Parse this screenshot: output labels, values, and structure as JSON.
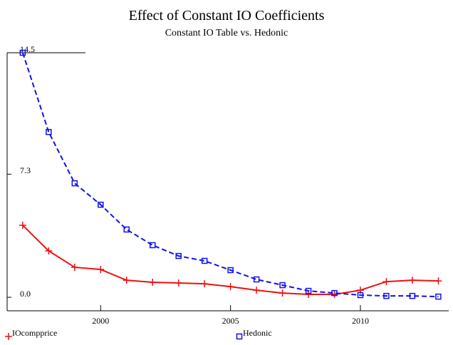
{
  "chart_data": {
    "type": "line",
    "title": "Effect of Constant IO Coefficients",
    "subtitle": "Constant IO Table vs. Hedonic",
    "x": [
      1997,
      1998,
      1999,
      2000,
      2001,
      2002,
      2003,
      2004,
      2005,
      2006,
      2007,
      2008,
      2009,
      2010,
      2011,
      2012,
      2013
    ],
    "series": [
      {
        "name": "IOcompprice",
        "color": "#ee1111",
        "marker": "plus",
        "dash": false,
        "values": [
          4.27,
          2.75,
          1.78,
          1.65,
          1.01,
          0.89,
          0.85,
          0.8,
          0.63,
          0.42,
          0.25,
          0.17,
          0.17,
          0.42,
          0.93,
          1.01,
          0.97
        ]
      },
      {
        "name": "Hedonic",
        "color": "#1111ee",
        "marker": "square",
        "dash": true,
        "values": [
          14.5,
          9.8,
          6.76,
          5.49,
          4.02,
          3.09,
          2.45,
          2.16,
          1.61,
          1.06,
          0.72,
          0.38,
          0.25,
          0.13,
          0.08,
          0.08,
          0.04
        ]
      }
    ],
    "xlim": [
      1996.4,
      2013.4
    ],
    "xticks": [
      2000,
      2005,
      2010
    ],
    "ylim": [
      -0.8,
      14.5
    ],
    "yticks": [
      {
        "value": 0,
        "label": "0.0"
      },
      7.3,
      14.5
    ],
    "legend": "bottom"
  }
}
